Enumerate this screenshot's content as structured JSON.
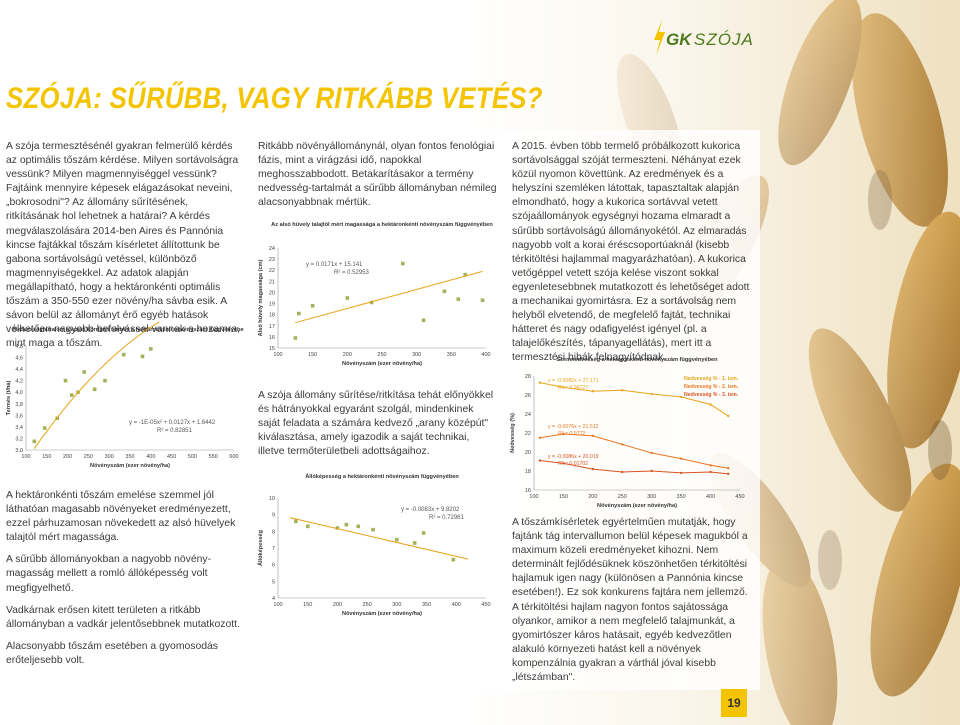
{
  "brand": {
    "gk": "GK",
    "name": "SZÓJA"
  },
  "title": "SZÓJA: SŰRŰBB, VAGY RITKÁBB VETÉS?",
  "page_number": "19",
  "col1": {
    "p1": "A szója termesztésénél gyakran felmerülő kérdés az optimális tőszám kérdése. Milyen sortávolságra vessünk? Milyen magmennyiséggel vessünk? Fajtáink mennyire képesek elágazásokat neveini, „bokrosodni\"? Az állomány sűrítésének, ritkításának hol lehetnek a határai? A kérdés megválaszolására 2014-ben Aires és Pannónia kincse fajtákkal tőszám kísérletet állítottunk be gabona sortávolságú vetéssel, különböző magmennyiségekkel. Az adatok alapján megállapítható, hogy a hektáronkénti optimális tőszám a 350-550 ezer növény/ha sávba esik. A sávon belül az állományt érő egyéb hatások vélhetően nagyobb befolyással vannak a hozamra, mint maga a tőszám.",
    "p2": "A hektáronkénti tőszám emelése szemmel jól láthatóan magasabb növényeket eredményezett, ezzel párhuzamosan növekedett az alsó hüvelyek talajtól mért magassága.",
    "p3": "A sűrűbb állományokban a nagyobb növény-magasság mellett a romló állóképesség volt megfigyelhető.",
    "p4": "Vadkárnak erősen kitett területen a ritkább állományban a vadkár jelentősebbnek mutatkozott.",
    "p5": "Alacsonyabb tőszám esetében a gyomosodás erőteljesebb volt."
  },
  "col2": {
    "p1": "Ritkább növényállománynál, olyan fontos fenológiai fázis, mint a virágzási idő, napokkal meghosszabbodott. Betakarításakor a termény nedvesség-tartalmát a sűrűbb állományban némileg alacsonyabbnak mértük.",
    "p2": "A szója állomány sűrítése/ritkítása tehát előnyökkel és hátrányokkal egyaránt szolgál, mindenkinek saját feladata a számára kedvező „arany középút\" kiválasztása, amely igazodik a saját technikai, illetve termőterületbeli adottságaihoz."
  },
  "col3": {
    "p1": "A 2015. évben több termelő próbálkozott kukorica sortávolsággal szóját termeszteni. Néhányat ezek közül nyomon követtünk. Az eredmények és a helyszíni szemléken látottak, tapasztaltak alapján elmondható, hogy a kukorica sortávval vetett szójaállományok egységnyi hozama elmaradt a sűrűbb sortávolságú állományokétól. Az elmaradás nagyobb volt a korai éréscsoportúaknál (kisebb térkitöltési hajlammal magyarázhatóan). A kukorica vetőgéppel vetett szója kelése viszont sokkal egyenletesebbnek mutatkozott és lehetőséget adott a mechanikai gyomirtásra. Ez a sortávolság nem helyből elvetendő, de megfelelő fajtát, technikai hátteret és nagy odafigyelést igényel (pl. a talajelőkészítés, tápanyagellátás), mert itt a termesztési hibák felnagyítódnak.",
    "p2": "A tőszámkísérletek egyértelműen mutatják, hogy fajtánk tág intervallumon belül képesek magukból a maximum közeli eredményeket kihozni. Nem determinált fejlődésüknek köszönhetően térkitöltési hajlamuk igen nagy (különösen a Pannónia kincse esetében!). Ez sok konkurens fajtára nem jellemző. A térkitöltési hajlam nagyon fontos sajátossága olyankor, amikor a nem megfelelő talajmunkát, a gyomirtószer káros hatásait, egyéb kedvezőtlen alakuló környezeti hatást kell a növények kompenzálnia gyakran a várthál jóval kisebb „létszámban\"."
  },
  "chart_data": [
    {
      "type": "scatter",
      "title": "Nedvességtartalom alapján korrigált termés a hektáronkénti növényszám függvényében",
      "xlabel": "Növényszám (ezer növény/ha)",
      "ylabel": "Termés (t/ha)",
      "xlim": [
        100,
        600
      ],
      "ylim": [
        3.0,
        4.8
      ],
      "x_ticks": [
        "100",
        "150",
        "200",
        "250",
        "300",
        "350",
        "400",
        "450",
        "500",
        "550",
        "600"
      ],
      "y_ticks": [
        "3,0",
        "3,2",
        "3,4",
        "3,6",
        "3,8",
        "4,0",
        "4,2",
        "4,4",
        "4,6",
        "4,8"
      ],
      "points": [
        [
          120,
          3.15
        ],
        [
          145,
          3.38
        ],
        [
          175,
          3.55
        ],
        [
          195,
          4.2
        ],
        [
          210,
          3.95
        ],
        [
          225,
          4.0
        ],
        [
          240,
          4.35
        ],
        [
          265,
          4.05
        ],
        [
          290,
          4.2
        ],
        [
          335,
          4.65
        ],
        [
          380,
          4.62
        ],
        [
          400,
          4.75
        ]
      ],
      "equation": "y = -1E-05x² + 0.0127x + 1.6442",
      "r2": "R² = 0.82851"
    },
    {
      "type": "scatter",
      "title": "Az alsó hüvely talajtól mért magassága a hektáronkénti növényszám függvényében",
      "xlabel": "Növényszám (ezer növény/ha)",
      "ylabel": "Alsó hüvely magassága (cm)",
      "xlim": [
        100,
        400
      ],
      "ylim": [
        15,
        24
      ],
      "x_ticks": [
        "100",
        "150",
        "200",
        "250",
        "300",
        "350",
        "400"
      ],
      "y_ticks": [
        "15",
        "16",
        "17",
        "18",
        "19",
        "20",
        "21",
        "22",
        "23",
        "24"
      ],
      "points": [
        [
          125,
          15.9
        ],
        [
          130,
          18.1
        ],
        [
          150,
          18.8
        ],
        [
          200,
          19.5
        ],
        [
          235,
          19.1
        ],
        [
          280,
          22.6
        ],
        [
          310,
          17.5
        ],
        [
          340,
          20.1
        ],
        [
          360,
          19.4
        ],
        [
          370,
          21.6
        ],
        [
          395,
          19.3
        ]
      ],
      "equation": "y = 0.0171x + 15.141",
      "r2": "R² = 0.52953"
    },
    {
      "type": "line",
      "title": "Szemnedvesség a hektáronkénti növényszám függvényében",
      "xlabel": "Növényszám (ezer növény/ha)",
      "ylabel": "Nedvesség (%)",
      "xlim": [
        100,
        450
      ],
      "ylim": [
        16,
        28
      ],
      "x_ticks": [
        "100",
        "150",
        "200",
        "250",
        "300",
        "350",
        "400",
        "450"
      ],
      "y_ticks": [
        "16",
        "18",
        "20",
        "22",
        "24",
        "26",
        "28"
      ],
      "series": [
        {
          "name": "Nedvesség % - 1. ism.",
          "color": "#e8a417",
          "values": [
            [
              110,
              27.3
            ],
            [
              150,
              26.8
            ],
            [
              200,
              26.4
            ],
            [
              250,
              26.5
            ],
            [
              300,
              26.1
            ],
            [
              350,
              25.8
            ],
            [
              400,
              25.0
            ],
            [
              430,
              23.8
            ]
          ],
          "equation": "y = -0.0082x + 27.171",
          "r2": "R² = 0.96727"
        },
        {
          "name": "Nedvesség % - 2. ism.",
          "color": "#e87722",
          "values": [
            [
              110,
              21.5
            ],
            [
              150,
              21.9
            ],
            [
              200,
              21.7
            ],
            [
              250,
              20.8
            ],
            [
              300,
              19.9
            ],
            [
              350,
              19.3
            ],
            [
              400,
              18.6
            ],
            [
              430,
              18.3
            ]
          ],
          "equation": "y = -0.0076x + 21.512",
          "r2": "R² = 0.9772"
        },
        {
          "name": "Nedvesség % - 3. ism.",
          "color": "#d9531e",
          "values": [
            [
              110,
              19.1
            ],
            [
              150,
              18.8
            ],
            [
              200,
              18.2
            ],
            [
              250,
              17.9
            ],
            [
              300,
              18.0
            ],
            [
              350,
              17.8
            ],
            [
              400,
              17.9
            ],
            [
              430,
              17.7
            ]
          ],
          "equation": "y = -0.0086x + 20.019",
          "r2": "R² = 0.01702"
        }
      ]
    },
    {
      "type": "scatter",
      "title": "Állóképesség a hektáronkénti növényszám függvényében",
      "xlabel": "Növényszám (ezer növény/ha)",
      "ylabel": "Állóképesség",
      "xlim": [
        100,
        450
      ],
      "ylim": [
        4,
        10
      ],
      "x_ticks": [
        "100",
        "150",
        "200",
        "250",
        "300",
        "350",
        "400",
        "450"
      ],
      "y_ticks": [
        "4",
        "5",
        "6",
        "7",
        "8",
        "9",
        "10"
      ],
      "points": [
        [
          130,
          8.6
        ],
        [
          150,
          8.3
        ],
        [
          200,
          8.2
        ],
        [
          215,
          8.4
        ],
        [
          235,
          8.3
        ],
        [
          260,
          8.1
        ],
        [
          300,
          7.5
        ],
        [
          330,
          7.3
        ],
        [
          345,
          7.9
        ],
        [
          395,
          6.3
        ]
      ],
      "equation": "y = -0.0083x + 9.8202",
      "r2": "R² = 0.72961"
    }
  ]
}
